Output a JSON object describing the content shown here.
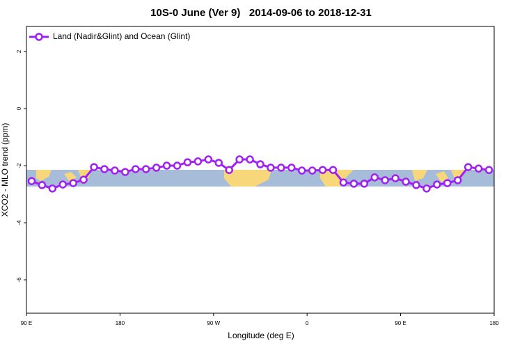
{
  "chart_data": {
    "type": "line",
    "title": "10S-0 June (Ver 9)   2014-09-06 to 2018-12-31",
    "x_label": "Longitude (deg E)",
    "y_label": "XCO2 - MLO trend (ppm)",
    "x": [
      95,
      105,
      115,
      125,
      135,
      145,
      155,
      165,
      175,
      185,
      195,
      205,
      215,
      225,
      235,
      245,
      255,
      265,
      275,
      285,
      295,
      305,
      315,
      325,
      335,
      345,
      355,
      365,
      375,
      385,
      395,
      405,
      415,
      425,
      435,
      445,
      455,
      465,
      475,
      485,
      495,
      505,
      515,
      525,
      535
    ],
    "series": [
      {
        "name": "Land (Nadir&Glint) and Ocean (Glint)",
        "color": "#a020f0",
        "values": [
          -2.54,
          -2.68,
          -2.8,
          -2.66,
          -2.61,
          -2.49,
          -2.05,
          -2.12,
          -2.17,
          -2.22,
          -2.12,
          -2.12,
          -2.07,
          -2.0,
          -2.0,
          -1.88,
          -1.85,
          -1.78,
          -1.9,
          -2.15,
          -1.78,
          -1.78,
          -1.95,
          -2.07,
          -2.07,
          -2.07,
          -2.17,
          -2.17,
          -2.15,
          -2.15,
          -2.59,
          -2.63,
          -2.63,
          -2.41,
          -2.51,
          -2.44,
          -2.56,
          -2.68,
          -2.8,
          -2.66,
          -2.61,
          -2.51,
          -2.05,
          -2.1,
          -2.15
        ]
      }
    ],
    "xlim": [
      90,
      540
    ],
    "xticks": [
      {
        "value": 90,
        "label": "90 E"
      },
      180,
      {
        "value": 270,
        "label": "90 W"
      },
      {
        "value": 360,
        "label": "0"
      },
      {
        "value": 450,
        "label": "90 E"
      },
      {
        "value": 540,
        "label": "180"
      }
    ],
    "ylim": [
      -7.17,
      2.88
    ],
    "yticks": [
      2,
      0,
      -2,
      -4,
      -6
    ],
    "legend": "top-left"
  }
}
